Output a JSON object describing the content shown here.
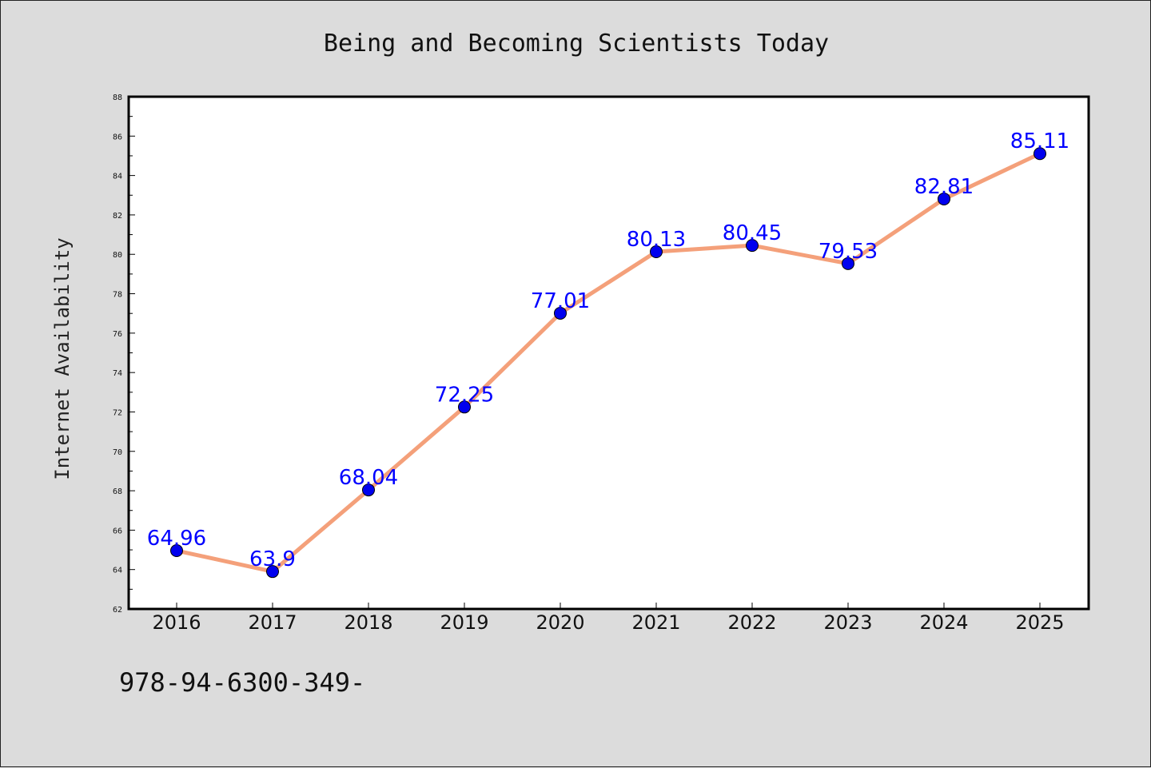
{
  "chart_data": {
    "type": "line",
    "title": "Being and Becoming Scientists Today",
    "xlabel": "",
    "ylabel": "Internet Availability",
    "categories": [
      "2016",
      "2017",
      "2018",
      "2019",
      "2020",
      "2021",
      "2022",
      "2023",
      "2024",
      "2025"
    ],
    "series": [
      {
        "values": [
          64.96,
          63.9,
          68.04,
          72.25,
          77.01,
          80.13,
          80.45,
          79.53,
          82.81,
          85.11
        ],
        "labels": [
          "64.96",
          "63.9",
          "68.04",
          "72.25",
          "77.01",
          "80.13",
          "80.45",
          "79.53",
          "82.81",
          "85.11"
        ],
        "line_color": "#f4a07a",
        "marker_color": "#0000ee"
      }
    ],
    "ylim": [
      62,
      88
    ],
    "yticks": [
      62,
      64,
      66,
      68,
      70,
      72,
      74,
      76,
      78,
      80,
      82,
      84,
      86,
      88
    ],
    "grid": false
  },
  "footer_note": "978-94-6300-349-",
  "colors": {
    "background": "#dcdcdc",
    "plot_background": "#ffffff",
    "label_color": "#0000ff"
  }
}
